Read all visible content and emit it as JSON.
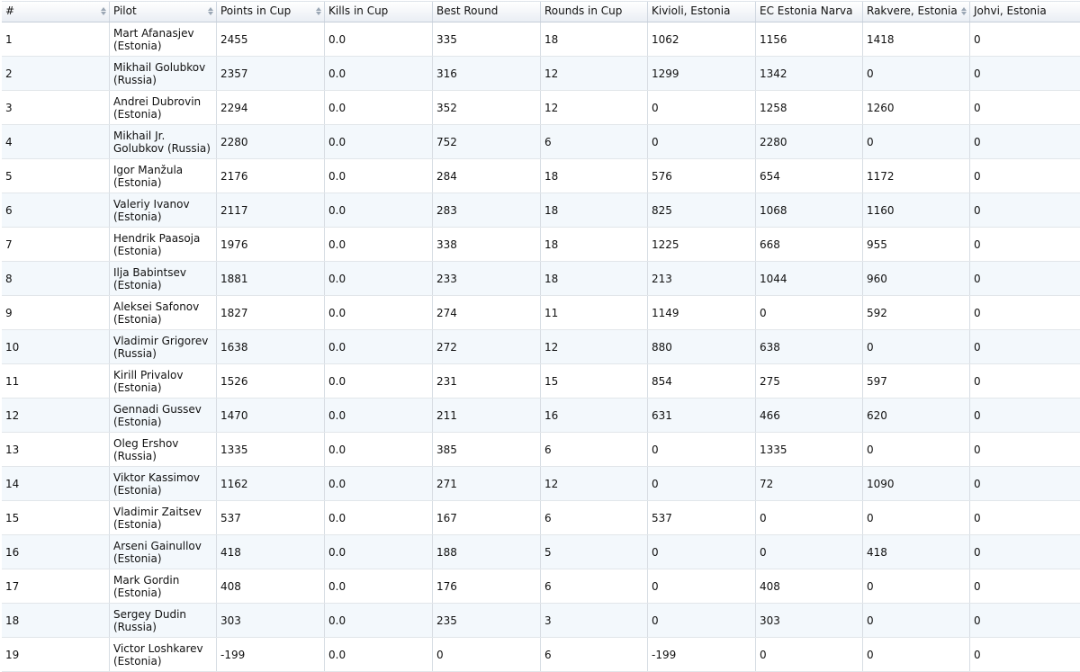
{
  "columns": [
    "#",
    "Pilot",
    "Points in Cup",
    "Kills in Cup",
    "Best Round",
    "Rounds in Cup",
    "Kivioli, Estonia",
    "EC Estonia Narva",
    "Rakvere, Estonia",
    "Johvi, Estonia"
  ],
  "rows": [
    [
      "1",
      "Mart Afanasjev (Estonia)",
      "2455",
      "0.0",
      "335",
      "18",
      "1062",
      "1156",
      "1418",
      "0"
    ],
    [
      "2",
      "Mikhail Golubkov (Russia)",
      "2357",
      "0.0",
      "316",
      "12",
      "1299",
      "1342",
      "0",
      "0"
    ],
    [
      "3",
      "Andrei Dubrovin (Estonia)",
      "2294",
      "0.0",
      "352",
      "12",
      "0",
      "1258",
      "1260",
      "0"
    ],
    [
      "4",
      "Mikhail Jr. Golubkov (Russia)",
      "2280",
      "0.0",
      "752",
      "6",
      "0",
      "2280",
      "0",
      "0"
    ],
    [
      "5",
      "Igor Manžula (Estonia)",
      "2176",
      "0.0",
      "284",
      "18",
      "576",
      "654",
      "1172",
      "0"
    ],
    [
      "6",
      "Valeriy Ivanov (Estonia)",
      "2117",
      "0.0",
      "283",
      "18",
      "825",
      "1068",
      "1160",
      "0"
    ],
    [
      "7",
      "Hendrik Paasoja (Estonia)",
      "1976",
      "0.0",
      "338",
      "18",
      "1225",
      "668",
      "955",
      "0"
    ],
    [
      "8",
      "Ilja Babintsev (Estonia)",
      "1881",
      "0.0",
      "233",
      "18",
      "213",
      "1044",
      "960",
      "0"
    ],
    [
      "9",
      "Aleksei Safonov (Estonia)",
      "1827",
      "0.0",
      "274",
      "11",
      "1149",
      "0",
      "592",
      "0"
    ],
    [
      "10",
      "Vladimir Grigorev (Russia)",
      "1638",
      "0.0",
      "272",
      "12",
      "880",
      "638",
      "0",
      "0"
    ],
    [
      "11",
      "Kirill Privalov (Estonia)",
      "1526",
      "0.0",
      "231",
      "15",
      "854",
      "275",
      "597",
      "0"
    ],
    [
      "12",
      "Gennadi Gussev (Estonia)",
      "1470",
      "0.0",
      "211",
      "16",
      "631",
      "466",
      "620",
      "0"
    ],
    [
      "13",
      "Oleg Ershov (Russia)",
      "1335",
      "0.0",
      "385",
      "6",
      "0",
      "1335",
      "0",
      "0"
    ],
    [
      "14",
      "Viktor Kassimov (Estonia)",
      "1162",
      "0.0",
      "271",
      "12",
      "0",
      "72",
      "1090",
      "0"
    ],
    [
      "15",
      "Vladimir Zaitsev (Estonia)",
      "537",
      "0.0",
      "167",
      "6",
      "537",
      "0",
      "0",
      "0"
    ],
    [
      "16",
      "Arseni Gainullov (Estonia)",
      "418",
      "0.0",
      "188",
      "5",
      "0",
      "0",
      "418",
      "0"
    ],
    [
      "17",
      "Mark Gordin (Estonia)",
      "408",
      "0.0",
      "176",
      "6",
      "0",
      "408",
      "0",
      "0"
    ],
    [
      "18",
      "Sergey Dudin (Russia)",
      "303",
      "0.0",
      "235",
      "3",
      "0",
      "303",
      "0",
      "0"
    ],
    [
      "19",
      "Victor Loshkarev (Estonia)",
      "-199",
      "0.0",
      "0",
      "6",
      "-199",
      "0",
      "0",
      "0"
    ]
  ]
}
